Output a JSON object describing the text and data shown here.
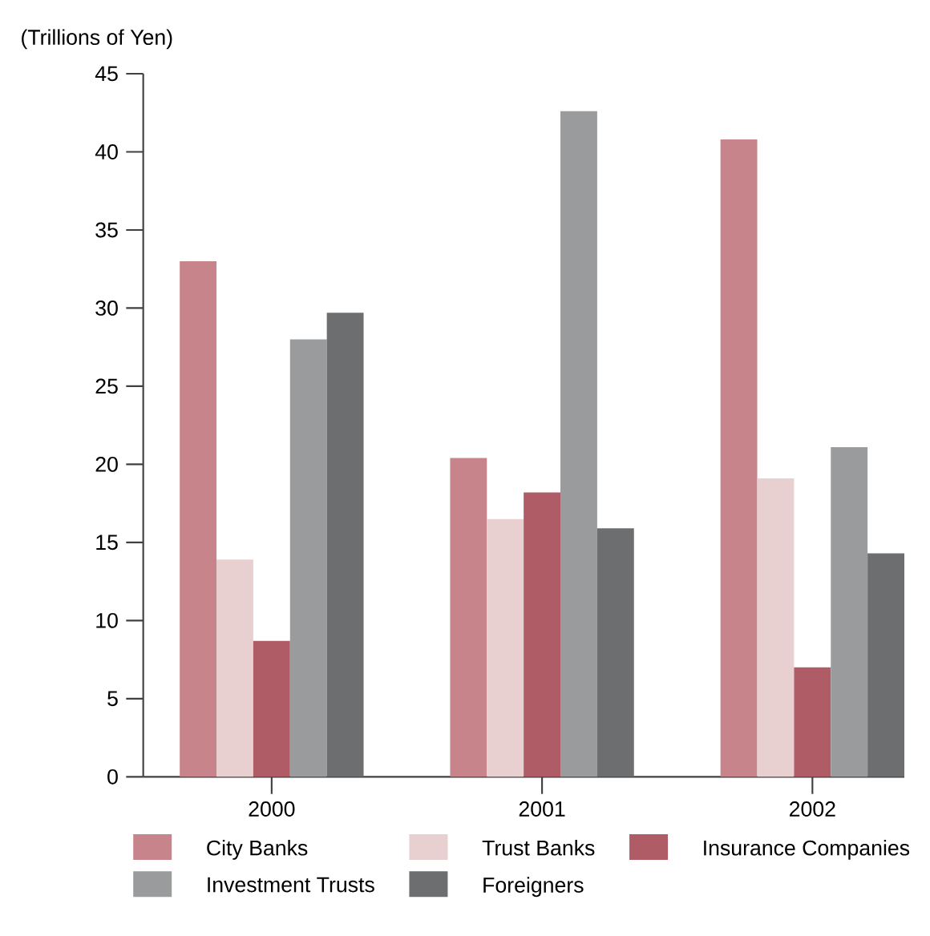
{
  "chart_data": {
    "type": "bar",
    "ylabel": "(Trillions of Yen)",
    "categories": [
      "2000",
      "2001",
      "2002"
    ],
    "series": [
      {
        "name": "City Banks",
        "color": "#c8848b",
        "values": [
          33.0,
          20.4,
          40.8
        ]
      },
      {
        "name": "Trust Banks",
        "color": "#e8cfd0",
        "values": [
          13.9,
          16.5,
          19.1
        ]
      },
      {
        "name": "Insurance Companies",
        "color": "#b05c66",
        "values": [
          8.7,
          18.2,
          7.0
        ]
      },
      {
        "name": "Investment Trusts",
        "color": "#9a9b9d",
        "values": [
          28.0,
          42.6,
          21.1
        ]
      },
      {
        "name": "Foreigners",
        "color": "#6d6e70",
        "values": [
          29.7,
          15.9,
          14.3
        ]
      }
    ],
    "ylim": [
      0,
      45
    ],
    "yticks": [
      0,
      5,
      10,
      15,
      20,
      25,
      30,
      35,
      40,
      45
    ],
    "legend": "bottom"
  }
}
